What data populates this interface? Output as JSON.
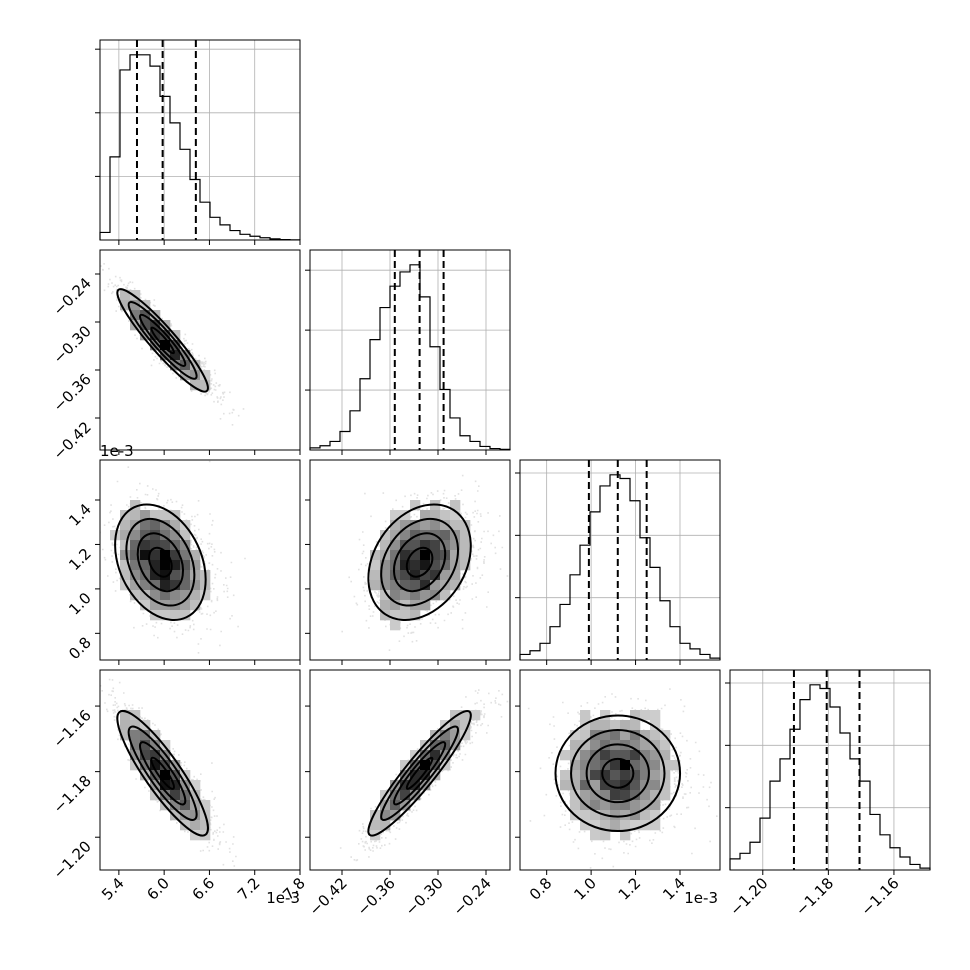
{
  "chart_data": {
    "type": "corner",
    "grid": true,
    "parameters": [
      {
        "scale_label": "1e-3",
        "range": [
          5.15,
          7.8
        ],
        "ticks": [
          5.4,
          6.0,
          6.6,
          7.2,
          7.8
        ],
        "tick_labels": [
          "5.4",
          "6.0",
          "6.6",
          "7.2",
          "7.8"
        ],
        "quantiles": [
          5.64,
          5.98,
          6.42
        ]
      },
      {
        "scale_label": "",
        "range": [
          -0.46,
          -0.21
        ],
        "ticks": [
          -0.42,
          -0.36,
          -0.3,
          -0.24
        ],
        "tick_labels": [
          "−0.42",
          "−0.36",
          "−0.30",
          "−0.24"
        ],
        "quantiles": [
          -0.354,
          -0.323,
          -0.293
        ]
      },
      {
        "scale_label": "1e-3",
        "range": [
          0.68,
          1.58
        ],
        "ticks": [
          0.8,
          1.0,
          1.2,
          1.4
        ],
        "tick_labels": [
          "0.8",
          "1.0",
          "1.2",
          "1.4"
        ],
        "quantiles": [
          0.99,
          1.12,
          1.25
        ]
      },
      {
        "scale_label": "",
        "range": [
          -1.21,
          -1.149
        ],
        "ticks": [
          -1.2,
          -1.18,
          -1.16
        ],
        "tick_labels": [
          "−1.20",
          "−1.18",
          "−1.16"
        ],
        "quantiles": [
          -1.1905,
          -1.1805,
          -1.1705
        ]
      }
    ],
    "histograms": [
      [
        2,
        22,
        45,
        49,
        49,
        46,
        38,
        31,
        24,
        16,
        10,
        6,
        4,
        2.5,
        1.5,
        1,
        0.6,
        0.3,
        0.1,
        0.05
      ],
      [
        0.6,
        1.2,
        2.4,
        5.2,
        11,
        20,
        31,
        40,
        46,
        50,
        52,
        43,
        29,
        17,
        9,
        4,
        2.4,
        1,
        0.4,
        0.2
      ],
      [
        1.5,
        2.5,
        4.5,
        9,
        15,
        23,
        31,
        40,
        47,
        50,
        49,
        43,
        33,
        25,
        16,
        9,
        4.5,
        3,
        1.5,
        0.5
      ],
      [
        3,
        4.5,
        7.5,
        14,
        24,
        30,
        38,
        46,
        50,
        49,
        44,
        37,
        30,
        24,
        15,
        9.5,
        6,
        3.5,
        1.5,
        0.5
      ]
    ],
    "joint_distributions": [
      {
        "x_param": 0,
        "y_param": 1,
        "mean": [
          5.98,
          -0.323
        ],
        "sd": [
          0.3,
          0.032
        ],
        "corr": -0.93
      },
      {
        "x_param": 0,
        "y_param": 2,
        "mean": [
          5.95,
          1.12
        ],
        "sd": [
          0.3,
          0.13
        ],
        "corr": -0.3
      },
      {
        "x_param": 1,
        "y_param": 2,
        "mean": [
          -0.323,
          1.12
        ],
        "sd": [
          0.032,
          0.13
        ],
        "corr": 0.28
      },
      {
        "x_param": 0,
        "y_param": 3,
        "mean": [
          5.98,
          -1.1805
        ],
        "sd": [
          0.3,
          0.0095
        ],
        "corr": -0.88
      },
      {
        "x_param": 1,
        "y_param": 3,
        "mean": [
          -0.323,
          -1.1805
        ],
        "sd": [
          0.032,
          0.0095
        ],
        "corr": 0.93
      },
      {
        "x_param": 2,
        "y_param": 3,
        "mean": [
          1.12,
          -1.1805
        ],
        "sd": [
          0.13,
          0.0095
        ],
        "corr": 0.0
      }
    ]
  }
}
